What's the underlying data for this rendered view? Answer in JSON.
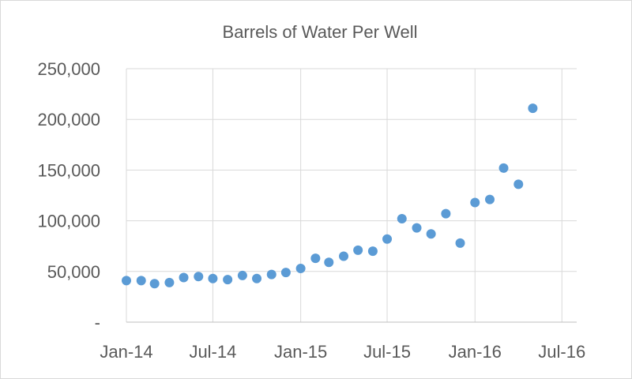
{
  "chart_data": {
    "type": "scatter",
    "title": "Barrels of Water Per Well",
    "xlabel": "",
    "ylabel": "",
    "x_axis": {
      "type": "date",
      "range": [
        "2014-01-01",
        "2016-08-01"
      ],
      "ticks": [
        {
          "date": "2014-01-01",
          "label": "Jan-14"
        },
        {
          "date": "2014-07-01",
          "label": "Jul-14"
        },
        {
          "date": "2015-01-01",
          "label": "Jan-15"
        },
        {
          "date": "2015-07-01",
          "label": "Jul-15"
        },
        {
          "date": "2016-01-01",
          "label": "Jan-16"
        },
        {
          "date": "2016-07-01",
          "label": "Jul-16"
        }
      ]
    },
    "y_axis": {
      "range": [
        0,
        250000
      ],
      "ticks": [
        {
          "value": 0,
          "label": "-"
        },
        {
          "value": 50000,
          "label": "50,000"
        },
        {
          "value": 100000,
          "label": "100,000"
        },
        {
          "value": 150000,
          "label": "150,000"
        },
        {
          "value": 200000,
          "label": "200,000"
        },
        {
          "value": 250000,
          "label": "250,000"
        }
      ]
    },
    "grid": {
      "horizontal": true,
      "vertical": true
    },
    "marker_color": "#5b9bd5",
    "points": [
      {
        "x": "2014-01-01",
        "y": 41000
      },
      {
        "x": "2014-02-01",
        "y": 41000
      },
      {
        "x": "2014-03-01",
        "y": 38000
      },
      {
        "x": "2014-04-01",
        "y": 39000
      },
      {
        "x": "2014-05-01",
        "y": 44000
      },
      {
        "x": "2014-06-01",
        "y": 45000
      },
      {
        "x": "2014-07-01",
        "y": 43000
      },
      {
        "x": "2014-08-01",
        "y": 42000
      },
      {
        "x": "2014-09-01",
        "y": 46000
      },
      {
        "x": "2014-10-01",
        "y": 43000
      },
      {
        "x": "2014-11-01",
        "y": 47000
      },
      {
        "x": "2014-12-01",
        "y": 49000
      },
      {
        "x": "2015-01-01",
        "y": 53000
      },
      {
        "x": "2015-02-01",
        "y": 63000
      },
      {
        "x": "2015-03-01",
        "y": 59000
      },
      {
        "x": "2015-04-01",
        "y": 65000
      },
      {
        "x": "2015-05-01",
        "y": 71000
      },
      {
        "x": "2015-06-01",
        "y": 70000
      },
      {
        "x": "2015-07-01",
        "y": 82000
      },
      {
        "x": "2015-08-01",
        "y": 102000
      },
      {
        "x": "2015-09-01",
        "y": 93000
      },
      {
        "x": "2015-10-01",
        "y": 87000
      },
      {
        "x": "2015-11-01",
        "y": 107000
      },
      {
        "x": "2015-12-01",
        "y": 78000
      },
      {
        "x": "2016-01-01",
        "y": 118000
      },
      {
        "x": "2016-02-01",
        "y": 121000
      },
      {
        "x": "2016-03-01",
        "y": 152000
      },
      {
        "x": "2016-04-01",
        "y": 136000
      },
      {
        "x": "2016-05-01",
        "y": 211000
      }
    ]
  }
}
